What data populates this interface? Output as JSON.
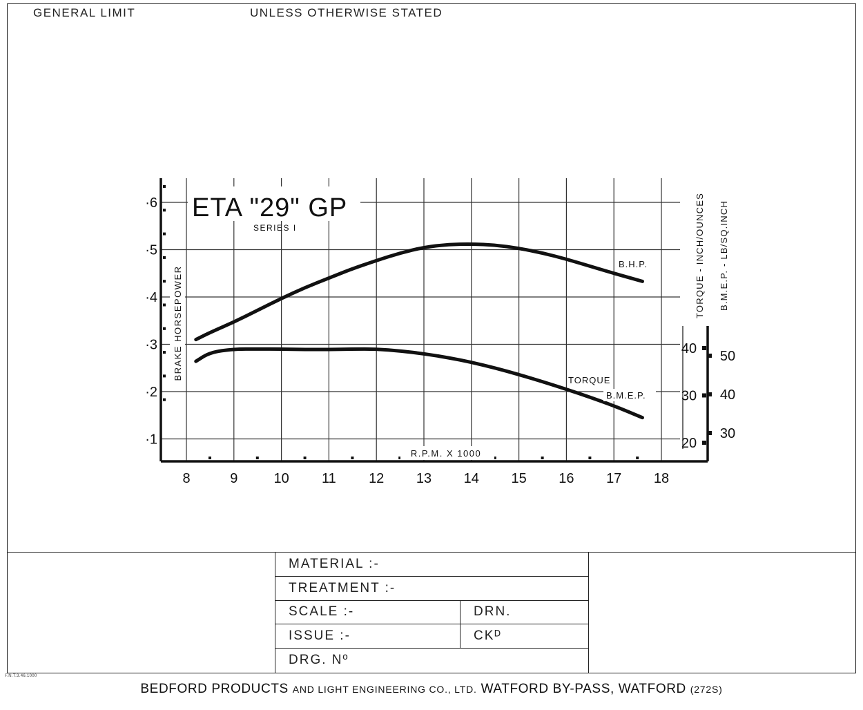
{
  "header": {
    "left": "GENERAL  LIMIT",
    "right": "UNLESS  OTHERWISE  STATED"
  },
  "chart_data": {
    "type": "line",
    "title": "ETA \"29\" GP",
    "subtitle": "SERIES I",
    "xlabel": "R.P.M.  X 1000",
    "ylabel": "BRAKE HORSEPOWER",
    "y2label": "TORQUE - INCH/OUNCES",
    "y3label": "B.M.E.P. - LB/SQ.INCH",
    "xlim": [
      7.5,
      19
    ],
    "ylim": [
      0,
      0.6
    ],
    "x_ticks": [
      "8",
      "9",
      "10",
      "11",
      "12",
      "13",
      "14",
      "15",
      "16",
      "17",
      "18"
    ],
    "y_ticks": [
      "·1",
      "·2",
      "·3",
      "·4",
      "·5",
      "·6"
    ],
    "torque_ticks": [
      "20",
      "30",
      "40"
    ],
    "bmep_ticks": [
      "30",
      "40",
      "50"
    ],
    "grid": true,
    "series": [
      {
        "name": "B.H.P.",
        "x": [
          8.2,
          8.5,
          9,
          9.5,
          10,
          10.5,
          11,
          11.5,
          12,
          12.5,
          13,
          13.5,
          14,
          14.5,
          15,
          15.5,
          16,
          16.5,
          17,
          17.6
        ],
        "y": [
          0.31,
          0.325,
          0.347,
          0.372,
          0.397,
          0.42,
          0.44,
          0.46,
          0.477,
          0.493,
          0.505,
          0.511,
          0.512,
          0.51,
          0.503,
          0.493,
          0.48,
          0.465,
          0.45,
          0.433
        ]
      },
      {
        "name": "TORQUE / B.M.E.P.",
        "x": [
          8.2,
          8.5,
          9,
          9.5,
          10,
          10.5,
          11,
          11.5,
          12,
          12.5,
          13,
          13.5,
          14,
          14.5,
          15,
          15.5,
          16,
          16.5,
          17,
          17.6
        ],
        "y": [
          0.264,
          0.283,
          0.29,
          0.29,
          0.29,
          0.289,
          0.289,
          0.29,
          0.29,
          0.286,
          0.28,
          0.272,
          0.262,
          0.25,
          0.236,
          0.221,
          0.205,
          0.188,
          0.17,
          0.145
        ]
      }
    ],
    "annotations": [
      "B.H.P.",
      "TORQUE",
      "B.M.E.P."
    ]
  },
  "table": {
    "material": "MATERIAL :-",
    "treatment": "TREATMENT :-",
    "scale": "SCALE :-",
    "drn": "DRN.",
    "issue": "ISSUE :-",
    "ckd": "CKᴰ",
    "drg": "DRG. Nº"
  },
  "footer": {
    "main": "BEDFORD  PRODUCTS",
    "small": "AND  LIGHT  ENGINEERING  CO., LTD.",
    "address": "WATFORD  BY-PASS,  WATFORD",
    "code": "(272S)"
  },
  "printmark": "F.N.T.3.46.1000"
}
